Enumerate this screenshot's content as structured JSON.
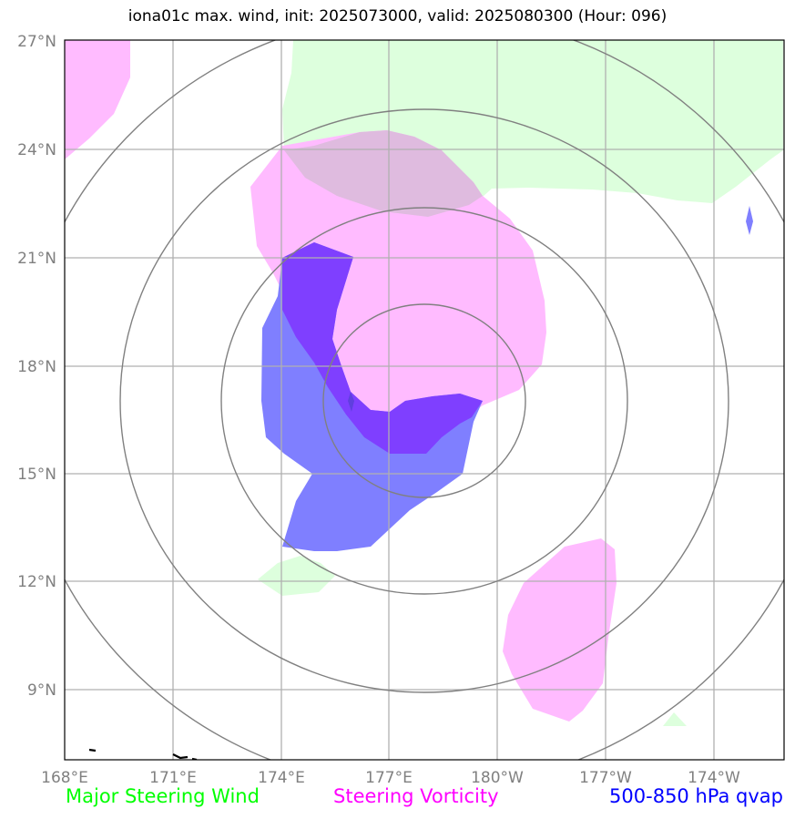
{
  "title": "iona01c max. wind, init: 2025073000, valid: 2025080300 (Hour: 096)",
  "map": {
    "lat_ticks": [
      "27°N",
      "24°N",
      "21°N",
      "18°N",
      "15°N",
      "12°N",
      "9°N"
    ],
    "lon_ticks": [
      "168°E",
      "171°E",
      "174°E",
      "177°E",
      "180°W",
      "177°W",
      "174°W"
    ],
    "extent": {
      "lon_min": 168,
      "lon_max": 188,
      "lat_min": 7,
      "lat_max": 27
    },
    "range_rings": 4,
    "grid": true
  },
  "legend": [
    {
      "label": "Major Steering Wind",
      "color": "#00ff00"
    },
    {
      "label": "Steering Vorticity",
      "color": "#ff00ff"
    },
    {
      "label": "500-850 hPa qvap",
      "color": "#0000ff"
    }
  ],
  "colors": {
    "wind_fill": "#ddffdd",
    "vorticity_fill": "#ffbbff",
    "qvap_fill": "#7f7fff",
    "overlap_fill": "#7f3fff",
    "grid": "#b0b0b0",
    "rings": "#808080"
  }
}
